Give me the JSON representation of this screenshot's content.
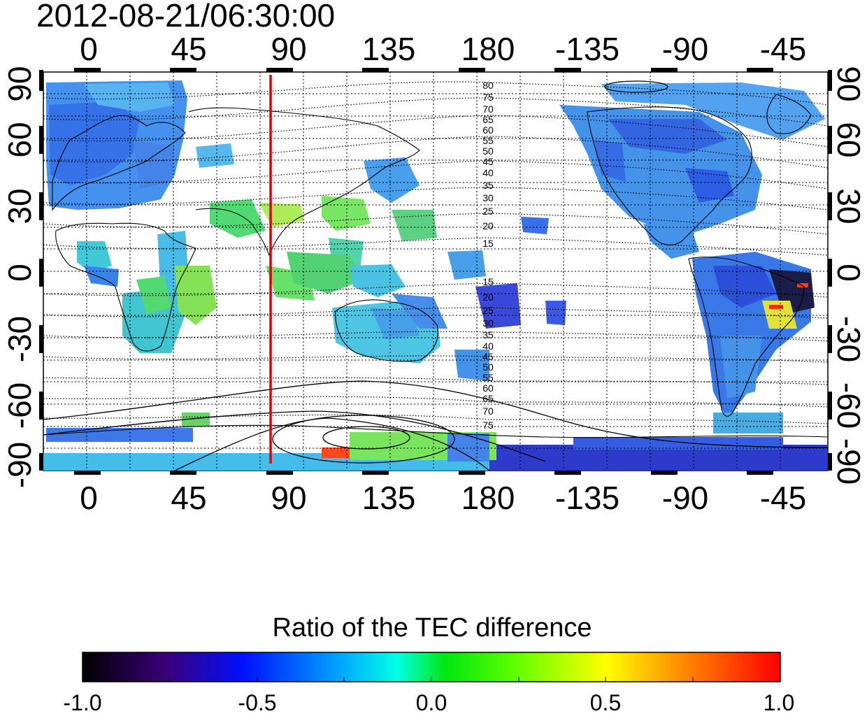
{
  "timestamp": "2012-08-21/06:30:00",
  "map": {
    "top_lon_labels": [
      "0",
      "45",
      "90",
      "135",
      "180",
      "-135",
      "-90",
      "-45"
    ],
    "bottom_lon_labels": [
      "0",
      "45",
      "90",
      "135",
      "180",
      "-135",
      "-90",
      "-45"
    ],
    "left_lat_labels": [
      "90",
      "60",
      "30",
      "0",
      "-30",
      "-60",
      "-90"
    ],
    "right_lat_labels": [
      "90",
      "60",
      "30",
      "0",
      "-30",
      "-60",
      "-90"
    ],
    "north_contour_labels": [
      "80",
      "75",
      "70",
      "65",
      "60",
      "55",
      "50",
      "45",
      "40",
      "35",
      "30",
      "25",
      "20",
      "15"
    ],
    "south_contour_labels": [
      "15",
      "20",
      "25",
      "30",
      "35",
      "40",
      "45",
      "50",
      "55",
      "60",
      "65",
      "70",
      "75"
    ],
    "marker_line": {
      "color": "#e00000",
      "longitude": 84
    }
  },
  "colorbar": {
    "title": "Ratio of the TEC difference",
    "tick_labels": [
      "-1.0",
      "-0.5",
      "0.0",
      "0.5",
      "1.0"
    ],
    "range": [
      -1.0,
      1.0
    ],
    "colormap": [
      "#000000",
      "#3a0078",
      "#0010ff",
      "#009cff",
      "#00ffe6",
      "#00e610",
      "#60ff00",
      "#ffff00",
      "#ff8000",
      "#ff0000"
    ]
  },
  "colors": {
    "ocean": "#ffffff",
    "grid": "#000000",
    "coastline": "#000000"
  }
}
